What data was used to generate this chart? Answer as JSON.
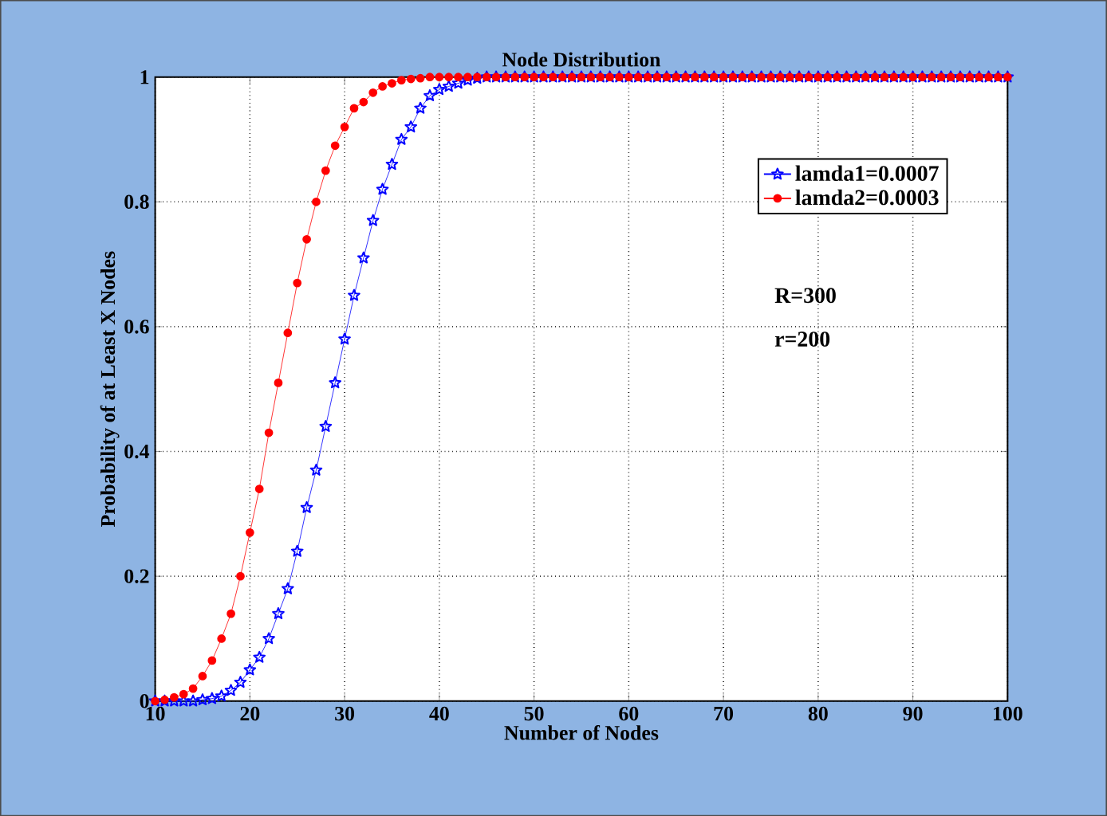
{
  "chart_data": {
    "type": "line",
    "title": "Node Distribution",
    "xlabel": "Number of Nodes",
    "ylabel": "Probability of at Least X Nodes",
    "x": [
      10,
      11,
      12,
      13,
      14,
      15,
      16,
      17,
      18,
      19,
      20,
      21,
      22,
      23,
      24,
      25,
      26,
      27,
      28,
      29,
      30,
      31,
      32,
      33,
      34,
      35,
      36,
      37,
      38,
      39,
      40,
      41,
      42,
      43,
      44,
      45,
      46,
      47,
      48,
      49,
      50,
      51,
      52,
      53,
      54,
      55,
      56,
      57,
      58,
      59,
      60,
      61,
      62,
      63,
      64,
      65,
      66,
      67,
      68,
      69,
      70,
      71,
      72,
      73,
      74,
      75,
      76,
      77,
      78,
      79,
      80,
      81,
      82,
      83,
      84,
      85,
      86,
      87,
      88,
      89,
      90,
      91,
      92,
      93,
      94,
      95,
      96,
      97,
      98,
      99,
      100
    ],
    "series": [
      {
        "name": "lamda1=0.0007",
        "color": "#0000ff",
        "marker": "star",
        "values": [
          0,
          0,
          0,
          0,
          0,
          0.002,
          0.004,
          0.008,
          0.017,
          0.03,
          0.05,
          0.07,
          0.1,
          0.14,
          0.18,
          0.24,
          0.31,
          0.37,
          0.44,
          0.51,
          0.58,
          0.65,
          0.71,
          0.77,
          0.82,
          0.86,
          0.9,
          0.92,
          0.95,
          0.97,
          0.98,
          0.985,
          0.99,
          0.995,
          0.998,
          1,
          1,
          1,
          1,
          1,
          1,
          1,
          1,
          1,
          1,
          1,
          1,
          1,
          1,
          1,
          1,
          1,
          1,
          1,
          1,
          1,
          1,
          1,
          1,
          1,
          1,
          1,
          1,
          1,
          1,
          1,
          1,
          1,
          1,
          1,
          1,
          1,
          1,
          1,
          1,
          1,
          1,
          1,
          1,
          1,
          1,
          1,
          1,
          1,
          1,
          1,
          1,
          1,
          1,
          1,
          1
        ]
      },
      {
        "name": "lamda2=0.0003",
        "color": "#ff0000",
        "marker": "circle",
        "values": [
          0,
          0.002,
          0.006,
          0.011,
          0.02,
          0.04,
          0.065,
          0.1,
          0.14,
          0.2,
          0.27,
          0.34,
          0.43,
          0.51,
          0.59,
          0.67,
          0.74,
          0.8,
          0.85,
          0.89,
          0.92,
          0.95,
          0.96,
          0.975,
          0.985,
          0.99,
          0.995,
          0.997,
          0.998,
          1,
          1,
          1,
          1,
          1,
          1,
          1,
          1,
          1,
          1,
          1,
          1,
          1,
          1,
          1,
          1,
          1,
          1,
          1,
          1,
          1,
          1,
          1,
          1,
          1,
          1,
          1,
          1,
          1,
          1,
          1,
          1,
          1,
          1,
          1,
          1,
          1,
          1,
          1,
          1,
          1,
          1,
          1,
          1,
          1,
          1,
          1,
          1,
          1,
          1,
          1,
          1,
          1,
          1,
          1,
          1,
          1,
          1,
          1,
          1,
          1,
          1
        ]
      }
    ],
    "xlim": [
      10,
      100
    ],
    "ylim": [
      0,
      1
    ],
    "xticks": [
      10,
      20,
      30,
      40,
      50,
      60,
      70,
      80,
      90,
      100
    ],
    "yticks": [
      0,
      0.2,
      0.4,
      0.6,
      0.8,
      1
    ],
    "grid": true,
    "legend": "top right",
    "line_style": "solid",
    "annotations": [
      "R=300",
      "r=200"
    ]
  }
}
